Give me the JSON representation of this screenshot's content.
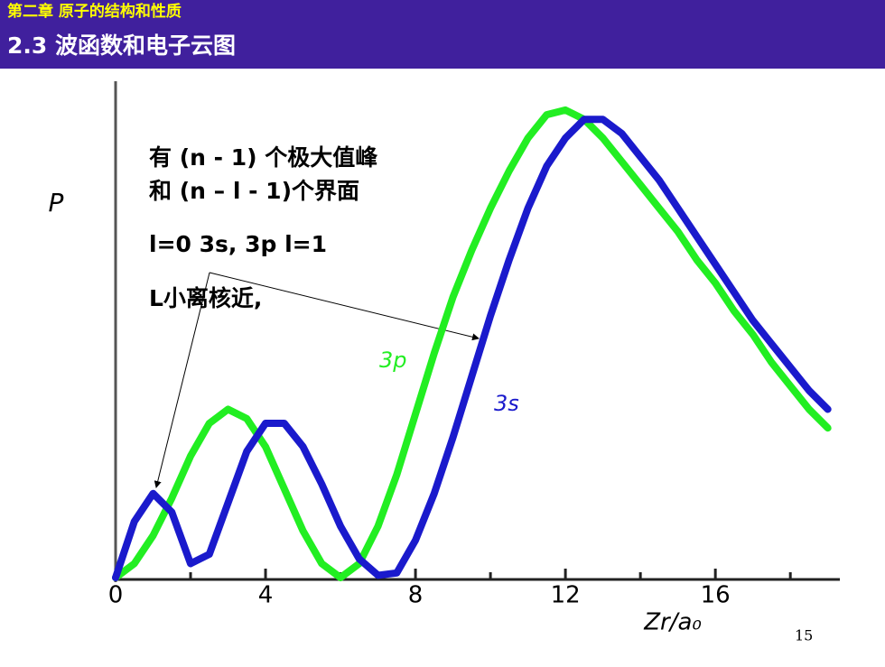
{
  "header": {
    "chapter": "第二章 原子的结构和性质",
    "title": "2.3 波函数和电子云图"
  },
  "page_number": "15",
  "chart_data": {
    "type": "line",
    "x_label": "Zr/a₀",
    "y_label": "P",
    "x": [
      0,
      0.5,
      1,
      1.5,
      2,
      2.5,
      3,
      3.5,
      4,
      4.5,
      5,
      5.5,
      6,
      6.5,
      7,
      7.5,
      8,
      8.5,
      9,
      9.5,
      10,
      10.5,
      11,
      11.5,
      12,
      12.5,
      13,
      13.5,
      14,
      14.5,
      15,
      15.5,
      16,
      16.5,
      17,
      17.5,
      18,
      18.5,
      19
    ],
    "series": [
      {
        "name": "3p",
        "color": "#22ee22",
        "values": [
          0,
          0.03,
          0.09,
          0.17,
          0.26,
          0.33,
          0.36,
          0.34,
          0.28,
          0.19,
          0.1,
          0.03,
          0.0,
          0.03,
          0.11,
          0.22,
          0.35,
          0.48,
          0.6,
          0.7,
          0.79,
          0.87,
          0.94,
          0.99,
          1.0,
          0.98,
          0.94,
          0.89,
          0.84,
          0.79,
          0.74,
          0.68,
          0.63,
          0.57,
          0.52,
          0.46,
          0.41,
          0.36,
          0.32
        ]
      },
      {
        "name": "3s",
        "color": "#1a1acc",
        "values": [
          0,
          0.12,
          0.18,
          0.14,
          0.03,
          0.05,
          0.16,
          0.27,
          0.33,
          0.33,
          0.28,
          0.2,
          0.11,
          0.04,
          0.005,
          0.01,
          0.08,
          0.18,
          0.3,
          0.43,
          0.56,
          0.68,
          0.79,
          0.88,
          0.94,
          0.98,
          0.98,
          0.95,
          0.9,
          0.85,
          0.79,
          0.73,
          0.67,
          0.61,
          0.55,
          0.5,
          0.45,
          0.4,
          0.36
        ]
      }
    ],
    "xlim": [
      0,
      19.2
    ],
    "xticks": [
      0,
      4,
      8,
      12,
      16
    ],
    "xminorticks": [
      2,
      6,
      10,
      14,
      18
    ],
    "ylim": [
      0,
      1.05
    ],
    "annotations": [
      "有 (n - 1) 个极大值峰",
      "和 (n – l - 1)个界面",
      "l=0 3s, 3p  l=1",
      "L小离核近,"
    ]
  }
}
